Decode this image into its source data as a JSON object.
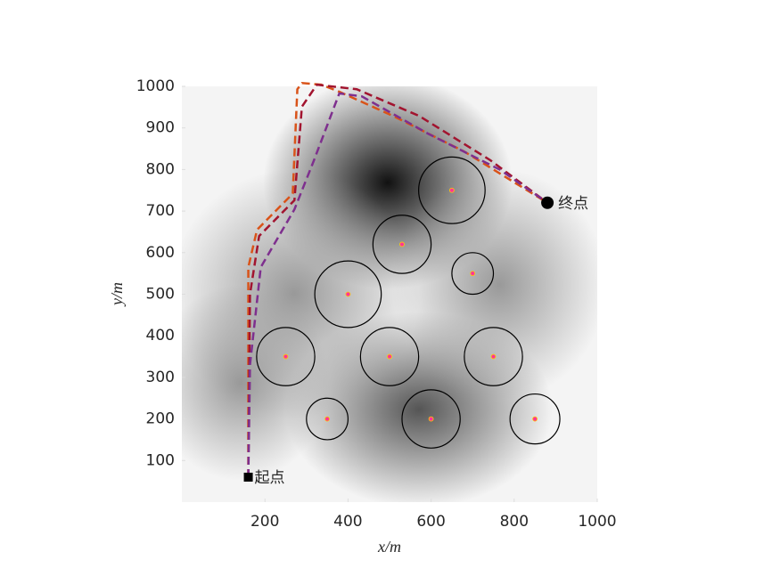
{
  "chart_data": {
    "type": "path-planning",
    "xlabel": "x/m",
    "ylabel": "y/m",
    "xlim": [
      0,
      1000
    ],
    "ylim": [
      0,
      1000
    ],
    "xticks": [
      200,
      400,
      600,
      800,
      1000
    ],
    "yticks": [
      100,
      200,
      300,
      400,
      500,
      600,
      700,
      800,
      900,
      1000
    ],
    "obstacles": [
      {
        "x": 650,
        "y": 750,
        "r": 80
      },
      {
        "x": 530,
        "y": 620,
        "r": 70
      },
      {
        "x": 700,
        "y": 550,
        "r": 50
      },
      {
        "x": 400,
        "y": 500,
        "r": 80
      },
      {
        "x": 250,
        "y": 350,
        "r": 70
      },
      {
        "x": 500,
        "y": 350,
        "r": 70
      },
      {
        "x": 750,
        "y": 350,
        "r": 70
      },
      {
        "x": 350,
        "y": 200,
        "r": 50
      },
      {
        "x": 600,
        "y": 200,
        "r": 70
      },
      {
        "x": 850,
        "y": 200,
        "r": 60
      }
    ],
    "obstacle_color": "#000000",
    "center_color": "#ff3399",
    "series": [
      {
        "color": "#d95319",
        "x": [
          160,
          160,
          181,
          267,
          278,
          289,
          336,
          379,
          508,
          680,
          880
        ],
        "y": [
          60,
          565,
          655,
          742,
          993,
          1008,
          1004,
          987,
          929,
          843,
          720
        ]
      },
      {
        "color": "#a2142f",
        "x": [
          160,
          164,
          186,
          271,
          289,
          325,
          421,
          571,
          743,
          880
        ],
        "y": [
          60,
          500,
          640,
          726,
          951,
          1004,
          993,
          929,
          822,
          720
        ]
      },
      {
        "color": "#7e2f8e",
        "x": [
          160,
          164,
          190,
          271,
          318,
          379,
          433,
          593,
          765,
          880
        ],
        "y": [
          60,
          330,
          565,
          704,
          822,
          983,
          976,
          886,
          800,
          720
        ]
      }
    ],
    "start": {
      "label": "起点",
      "x": 160,
      "y": 60
    },
    "end": {
      "label": "终点",
      "x": 880,
      "y": 720
    }
  }
}
